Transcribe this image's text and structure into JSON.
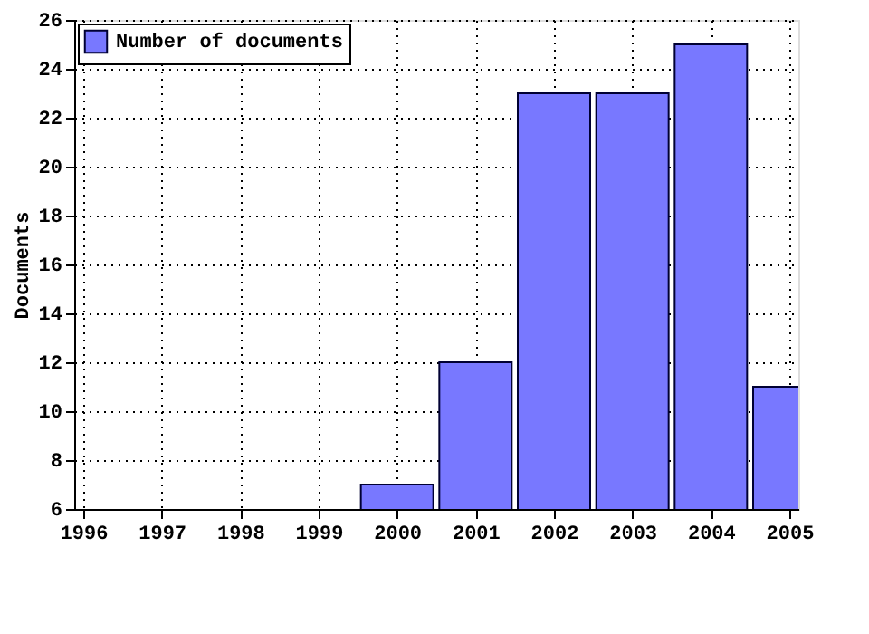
{
  "chart_data": {
    "type": "bar",
    "ylabel": "Documents",
    "x": [
      2000,
      2001,
      2002,
      2003,
      2004,
      2005
    ],
    "series": [
      {
        "name": "Number of documents",
        "color": "#7878ff",
        "values": [
          7,
          12,
          23,
          23,
          25,
          11
        ]
      }
    ],
    "xlim": [
      1996,
      2005
    ],
    "xticks": [
      1996,
      1997,
      1998,
      1999,
      2000,
      2001,
      2002,
      2003,
      2004,
      2005
    ],
    "ylim": [
      6,
      26
    ],
    "yticks": [
      6,
      8,
      10,
      12,
      14,
      16,
      18,
      20,
      22,
      24,
      26
    ],
    "grid": true,
    "legend": "top left"
  }
}
